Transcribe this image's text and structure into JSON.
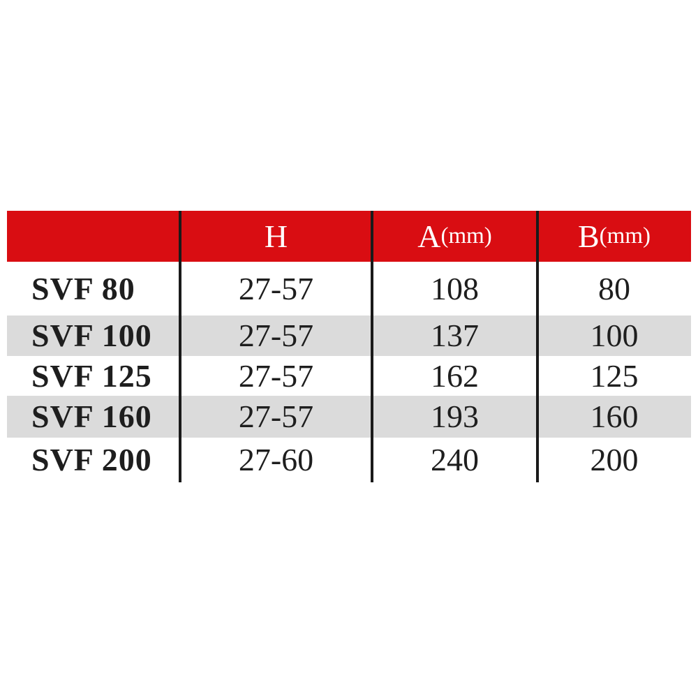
{
  "table": {
    "columns": [
      {
        "label": "",
        "unit": ""
      },
      {
        "label": "H",
        "unit": ""
      },
      {
        "label": "A",
        "unit": "(mm)"
      },
      {
        "label": "B",
        "unit": "(mm)"
      }
    ],
    "rows": [
      {
        "model": "SVF 80",
        "h": "27-57",
        "a": "108",
        "b": "80"
      },
      {
        "model": "SVF 100",
        "h": "27-57",
        "a": "137",
        "b": "100"
      },
      {
        "model": "SVF 125",
        "h": "27-57",
        "a": "162",
        "b": "125"
      },
      {
        "model": "SVF 160",
        "h": "27-57",
        "a": "193",
        "b": "160"
      },
      {
        "model": "SVF 200",
        "h": "27-60",
        "a": "240",
        "b": "200"
      }
    ]
  },
  "colors": {
    "header-bg": "#d90d12",
    "header-text": "#ffffff",
    "stripe": "#dbdbdb",
    "divider": "#1a1a1a",
    "text": "#1e1e1e",
    "page-bg": "#ffffff"
  }
}
